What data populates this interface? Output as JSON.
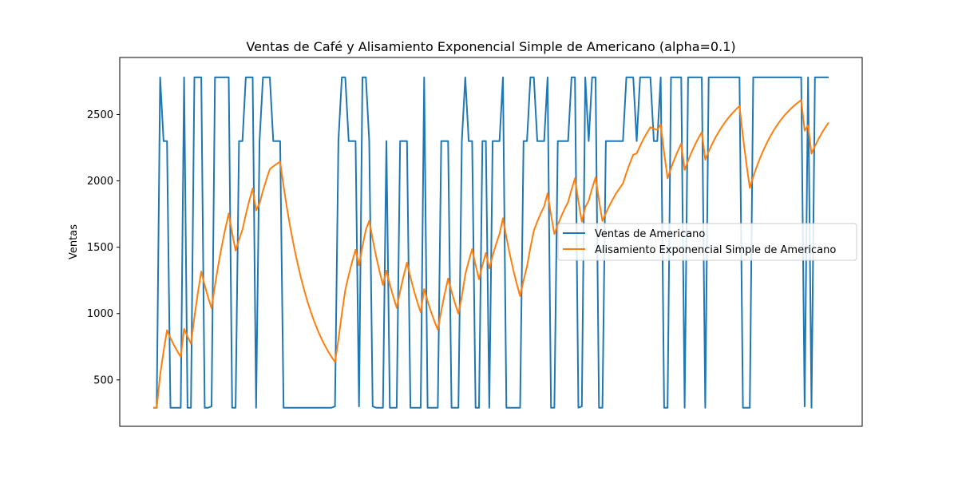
{
  "chart_data": {
    "type": "line",
    "title": "Ventas de Café y Alisamiento Exponencial Simple de Americano (alpha=0.1)",
    "xlabel": "",
    "ylabel": "Ventas",
    "x_ticks_visible": false,
    "yticks": [
      500,
      1000,
      1500,
      2000,
      2500
    ],
    "ylim": [
      150,
      2930
    ],
    "grid": false,
    "legend_position": "center-right",
    "series": [
      {
        "name": "Ventas de Americano",
        "color": "#1f77b4",
        "values": [
          290,
          290,
          2780,
          2300,
          2300,
          290,
          290,
          290,
          290,
          2780,
          290,
          290,
          2780,
          2780,
          2780,
          290,
          290,
          300,
          2780,
          2780,
          2780,
          2780,
          2780,
          290,
          290,
          2300,
          2300,
          2780,
          2780,
          2780,
          290,
          2300,
          2780,
          2780,
          2780,
          2300,
          2300,
          2300,
          290,
          290,
          290,
          290,
          290,
          290,
          290,
          290,
          290,
          290,
          290,
          290,
          290,
          290,
          290,
          300,
          2300,
          2780,
          2780,
          2300,
          2300,
          2300,
          300,
          2780,
          2780,
          2300,
          300,
          290,
          290,
          290,
          2300,
          290,
          290,
          290,
          2300,
          2300,
          2300,
          290,
          290,
          290,
          290,
          2780,
          290,
          290,
          290,
          290,
          2300,
          2300,
          2300,
          290,
          290,
          290,
          2300,
          2780,
          2300,
          2300,
          290,
          290,
          2300,
          2300,
          290,
          2300,
          2300,
          2300,
          2780,
          290,
          290,
          290,
          290,
          290,
          2300,
          2300,
          2780,
          2780,
          2300,
          2300,
          2300,
          2780,
          290,
          290,
          2300,
          2300,
          2300,
          2300,
          2780,
          2780,
          290,
          300,
          2780,
          2300,
          2780,
          2780,
          290,
          290,
          2300,
          2300,
          2300,
          2300,
          2300,
          2300,
          2780,
          2780,
          2780,
          2300,
          2780,
          2780,
          2780,
          2780,
          2300,
          2300,
          2780,
          290,
          290,
          2780,
          2780,
          2780,
          2780,
          290,
          2780,
          2780,
          2780,
          2780,
          2780,
          290,
          2780,
          2780,
          2780,
          2780,
          2780,
          2780,
          2780,
          2780,
          2780,
          2780,
          290,
          290,
          290,
          2780,
          2780,
          2780,
          2780,
          2780,
          2780,
          2780,
          2780,
          2780,
          2780,
          2780,
          2780,
          2780,
          2780,
          2780,
          300,
          2780,
          290,
          2780,
          2780,
          2780,
          2780,
          2780
        ]
      },
      {
        "name": "Alisamiento Exponencial Simple de Americano",
        "color": "#ff7f0e",
        "values": [
          290,
          290,
          539,
          715,
          874,
          816,
          763,
          716,
          673,
          885,
          826,
          772,
          973,
          1154,
          1317,
          1214,
          1122,
          1040,
          1214,
          1371,
          1512,
          1639,
          1754,
          1607,
          1475,
          1557,
          1632,
          1746,
          1850,
          1943,
          1777,
          1830,
          1925,
          2011,
          2088,
          2109,
          2128,
          2145,
          1960,
          1793,
          1643,
          1508,
          1386,
          1276,
          1178,
          1089,
          1009,
          937,
          872,
          814,
          762,
          715,
          673,
          635,
          802,
          999,
          1177,
          1289,
          1390,
          1481,
          1363,
          1505,
          1632,
          1699,
          1559,
          1432,
          1318,
          1215,
          1324,
          1220,
          1127,
          1043,
          1169,
          1282,
          1384,
          1274,
          1176,
          1087,
          1008,
          1185,
          1095,
          1015,
          943,
          878,
          1020,
          1148,
          1264,
          1166,
          1078,
          999,
          1129,
          1294,
          1395,
          1485,
          1366,
          1258,
          1363,
          1457,
          1340,
          1436,
          1523,
          1600,
          1718,
          1575,
          1446,
          1330,
          1226,
          1132,
          1249,
          1354,
          1497,
          1625,
          1693,
          1754,
          1808,
          1906,
          1744,
          1599,
          1669,
          1732,
          1789,
          1840,
          1934,
          2019,
          1846,
          1692,
          1801,
          1851,
          1944,
          2027,
          1854,
          1697,
          1757,
          1812,
          1861,
          1905,
          1944,
          1980,
          2060,
          2132,
          2197,
          2207,
          2264,
          2316,
          2362,
          2404,
          2393,
          2384,
          2424,
          2211,
          2019,
          2095,
          2164,
          2225,
          2281,
          2082,
          2152,
          2215,
          2271,
          2322,
          2368,
          2160,
          2222,
          2278,
          2328,
          2373,
          2414,
          2450,
          2483,
          2513,
          2540,
          2564,
          2336,
          2131,
          1947,
          2030,
          2105,
          2173,
          2233,
          2288,
          2337,
          2382,
          2422,
          2458,
          2490,
          2519,
          2545,
          2569,
          2590,
          2609,
          2378,
          2418,
          2205,
          2262,
          2314,
          2360,
          2402,
          2440
        ]
      }
    ]
  }
}
